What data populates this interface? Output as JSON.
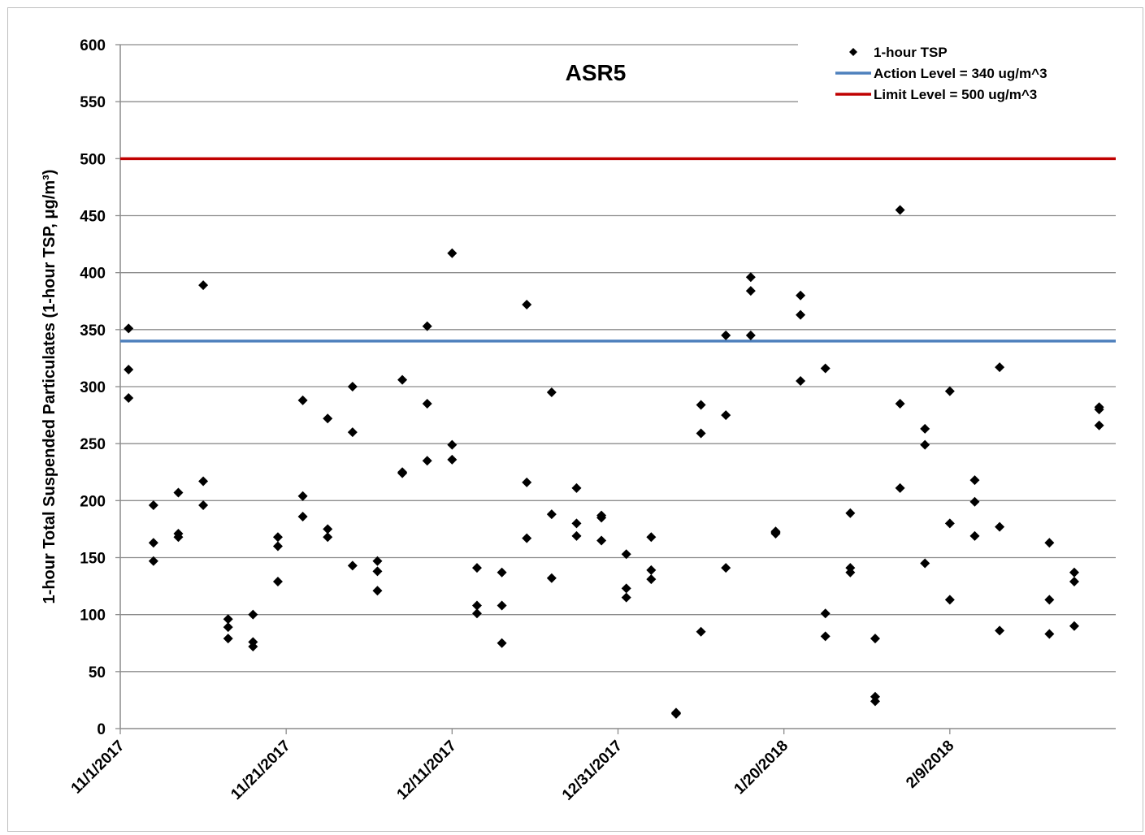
{
  "chart_data": {
    "type": "scatter",
    "title": "ASR5",
    "ylabel": "1-hour Total Suspended Particulates (1-hour TSP, μg/m³)",
    "xlabel": "",
    "ylim": [
      0,
      600
    ],
    "xlim": [
      "2017-11-01",
      "2018-03-01"
    ],
    "yticks": [
      0,
      50,
      100,
      150,
      200,
      250,
      300,
      350,
      400,
      450,
      500,
      550,
      600
    ],
    "xticks": [
      "2017-11-01",
      "2017-11-21",
      "2017-12-11",
      "2017-12-31",
      "2018-01-20",
      "2018-02-09"
    ],
    "xtick_labels": [
      "11/1/2017",
      "11/21/2017",
      "12/11/2017",
      "12/31/2017",
      "1/20/2018",
      "2/9/2018"
    ],
    "grid": true,
    "legend_position": "top-right",
    "legend": [
      {
        "label": "1-hour TSP",
        "color": "#000000",
        "marker": "diamond"
      },
      {
        "label": "Action Level = 340 ug/m^3",
        "color": "#4f81bd",
        "marker": "line"
      },
      {
        "label": "Limit Level = 500 ug/m^3",
        "color": "#c00000",
        "marker": "line"
      }
    ],
    "series": [
      {
        "name": "1-hour TSP",
        "points": [
          [
            "2017-11-02",
            351
          ],
          [
            "2017-11-02",
            315
          ],
          [
            "2017-11-02",
            290
          ],
          [
            "2017-11-05",
            196
          ],
          [
            "2017-11-05",
            163
          ],
          [
            "2017-11-05",
            147
          ],
          [
            "2017-11-08",
            207
          ],
          [
            "2017-11-08",
            171
          ],
          [
            "2017-11-08",
            168
          ],
          [
            "2017-11-11",
            389
          ],
          [
            "2017-11-11",
            217
          ],
          [
            "2017-11-11",
            196
          ],
          [
            "2017-11-14",
            96
          ],
          [
            "2017-11-14",
            89
          ],
          [
            "2017-11-14",
            79
          ],
          [
            "2017-11-17",
            100
          ],
          [
            "2017-11-17",
            76
          ],
          [
            "2017-11-17",
            72
          ],
          [
            "2017-11-20",
            168
          ],
          [
            "2017-11-20",
            160
          ],
          [
            "2017-11-20",
            129
          ],
          [
            "2017-11-23",
            288
          ],
          [
            "2017-11-23",
            204
          ],
          [
            "2017-11-23",
            186
          ],
          [
            "2017-11-26",
            272
          ],
          [
            "2017-11-26",
            175
          ],
          [
            "2017-11-26",
            168
          ],
          [
            "2017-11-29",
            300
          ],
          [
            "2017-11-29",
            260
          ],
          [
            "2017-11-29",
            143
          ],
          [
            "2017-12-02",
            147
          ],
          [
            "2017-12-02",
            138
          ],
          [
            "2017-12-02",
            121
          ],
          [
            "2017-12-05",
            306
          ],
          [
            "2017-12-05",
            225
          ],
          [
            "2017-12-05",
            224
          ],
          [
            "2017-12-08",
            353
          ],
          [
            "2017-12-08",
            285
          ],
          [
            "2017-12-08",
            235
          ],
          [
            "2017-12-11",
            417
          ],
          [
            "2017-12-11",
            249
          ],
          [
            "2017-12-11",
            236
          ],
          [
            "2017-12-14",
            141
          ],
          [
            "2017-12-14",
            108
          ],
          [
            "2017-12-14",
            101
          ],
          [
            "2017-12-17",
            137
          ],
          [
            "2017-12-17",
            108
          ],
          [
            "2017-12-17",
            75
          ],
          [
            "2017-12-20",
            372
          ],
          [
            "2017-12-20",
            216
          ],
          [
            "2017-12-20",
            167
          ],
          [
            "2017-12-23",
            295
          ],
          [
            "2017-12-23",
            188
          ],
          [
            "2017-12-23",
            132
          ],
          [
            "2017-12-26",
            211
          ],
          [
            "2017-12-26",
            180
          ],
          [
            "2017-12-26",
            169
          ],
          [
            "2017-12-29",
            187
          ],
          [
            "2017-12-29",
            185
          ],
          [
            "2017-12-29",
            165
          ],
          [
            "2018-01-01",
            153
          ],
          [
            "2018-01-01",
            123
          ],
          [
            "2018-01-01",
            115
          ],
          [
            "2018-01-04",
            168
          ],
          [
            "2018-01-04",
            139
          ],
          [
            "2018-01-04",
            131
          ],
          [
            "2018-01-07",
            13
          ],
          [
            "2018-01-07",
            13
          ],
          [
            "2018-01-07",
            14
          ],
          [
            "2018-01-10",
            284
          ],
          [
            "2018-01-10",
            259
          ],
          [
            "2018-01-10",
            85
          ],
          [
            "2018-01-13",
            345
          ],
          [
            "2018-01-13",
            275
          ],
          [
            "2018-01-13",
            141
          ],
          [
            "2018-01-16",
            396
          ],
          [
            "2018-01-16",
            384
          ],
          [
            "2018-01-16",
            345
          ],
          [
            "2018-01-19",
            173
          ],
          [
            "2018-01-19",
            172
          ],
          [
            "2018-01-19",
            171
          ],
          [
            "2018-01-22",
            380
          ],
          [
            "2018-01-22",
            363
          ],
          [
            "2018-01-22",
            305
          ],
          [
            "2018-01-25",
            316
          ],
          [
            "2018-01-25",
            101
          ],
          [
            "2018-01-25",
            81
          ],
          [
            "2018-01-28",
            189
          ],
          [
            "2018-01-28",
            141
          ],
          [
            "2018-01-28",
            137
          ],
          [
            "2018-01-31",
            79
          ],
          [
            "2018-01-31",
            28
          ],
          [
            "2018-01-31",
            24
          ],
          [
            "2018-02-03",
            455
          ],
          [
            "2018-02-03",
            285
          ],
          [
            "2018-02-03",
            211
          ],
          [
            "2018-02-06",
            263
          ],
          [
            "2018-02-06",
            249
          ],
          [
            "2018-02-06",
            145
          ],
          [
            "2018-02-09",
            296
          ],
          [
            "2018-02-09",
            180
          ],
          [
            "2018-02-09",
            113
          ],
          [
            "2018-02-12",
            218
          ],
          [
            "2018-02-12",
            199
          ],
          [
            "2018-02-12",
            169
          ],
          [
            "2018-02-15",
            317
          ],
          [
            "2018-02-15",
            177
          ],
          [
            "2018-02-15",
            86
          ],
          [
            "2018-02-21",
            163
          ],
          [
            "2018-02-21",
            113
          ],
          [
            "2018-02-21",
            83
          ],
          [
            "2018-02-24",
            137
          ],
          [
            "2018-02-24",
            129
          ],
          [
            "2018-02-24",
            90
          ],
          [
            "2018-02-27",
            282
          ],
          [
            "2018-02-27",
            280
          ],
          [
            "2018-02-27",
            266
          ]
        ]
      },
      {
        "name": "Action Level = 340 ug/m^3",
        "y": 340,
        "color": "#4f81bd"
      },
      {
        "name": "Limit Level = 500 ug/m^3",
        "y": 500,
        "color": "#c00000"
      }
    ]
  }
}
